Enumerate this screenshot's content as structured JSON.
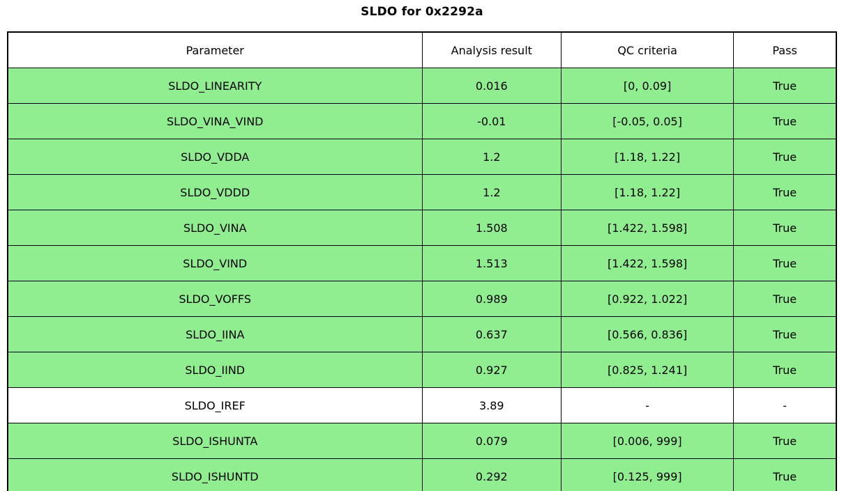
{
  "chart_data": {
    "type": "table",
    "title": "SLDO for 0x2292a",
    "columns": [
      "Parameter",
      "Analysis result",
      "QC criteria",
      "Pass"
    ],
    "rows": [
      {
        "parameter": "SLDO_LINEARITY",
        "result": "0.016",
        "criteria": "[0, 0.09]",
        "pass": "True"
      },
      {
        "parameter": "SLDO_VINA_VIND",
        "result": "-0.01",
        "criteria": "[-0.05, 0.05]",
        "pass": "True"
      },
      {
        "parameter": "SLDO_VDDA",
        "result": "1.2",
        "criteria": "[1.18, 1.22]",
        "pass": "True"
      },
      {
        "parameter": "SLDO_VDDD",
        "result": "1.2",
        "criteria": "[1.18, 1.22]",
        "pass": "True"
      },
      {
        "parameter": "SLDO_VINA",
        "result": "1.508",
        "criteria": "[1.422, 1.598]",
        "pass": "True"
      },
      {
        "parameter": "SLDO_VIND",
        "result": "1.513",
        "criteria": "[1.422, 1.598]",
        "pass": "True"
      },
      {
        "parameter": "SLDO_VOFFS",
        "result": "0.989",
        "criteria": "[0.922, 1.022]",
        "pass": "True"
      },
      {
        "parameter": "SLDO_IINA",
        "result": "0.637",
        "criteria": "[0.566, 0.836]",
        "pass": "True"
      },
      {
        "parameter": "SLDO_IIND",
        "result": "0.927",
        "criteria": "[0.825, 1.241]",
        "pass": "True"
      },
      {
        "parameter": "SLDO_IREF",
        "result": "3.89",
        "criteria": "-",
        "pass": "-"
      },
      {
        "parameter": "SLDO_ISHUNTA",
        "result": "0.079",
        "criteria": "[0.006, 999]",
        "pass": "True"
      },
      {
        "parameter": "SLDO_ISHUNTD",
        "result": "0.292",
        "criteria": "[0.125, 999]",
        "pass": "True"
      }
    ],
    "layout": {
      "header_position": "top",
      "grid": true
    }
  },
  "colors": {
    "pass_row_bg": "#90ee90",
    "neutral_row_bg": "#ffffff",
    "header_bg": "#ffffff",
    "border": "#000000",
    "text": "#000000"
  }
}
